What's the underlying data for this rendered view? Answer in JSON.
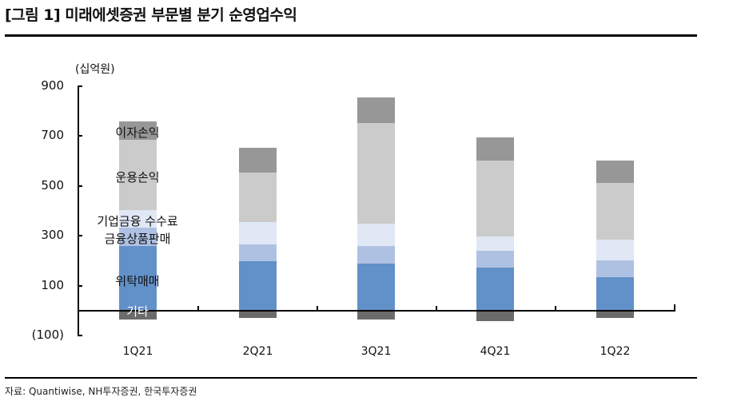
{
  "header": {
    "title": "[그림 1] 미래에셋증권 부문별 분기 순영업수익"
  },
  "footer": {
    "source": "자료: Quantiwise, NH투자증권, 한국투자증권"
  },
  "chart_data": {
    "type": "bar",
    "stacked": true,
    "title": "[그림 1] 미래에셋증권 부문별 분기 순영업수익",
    "unit": "(십억원)",
    "xlabel": "",
    "ylabel": "(십억원)",
    "ylim": [
      -100,
      900
    ],
    "yticks": [
      900,
      700,
      500,
      300,
      100,
      -100
    ],
    "ytick_labels": [
      "900",
      "700",
      "500",
      "300",
      "100",
      "(100)"
    ],
    "grid": false,
    "legend_position": "inline labels on first bar",
    "categories": [
      "1Q21",
      "2Q21",
      "3Q21",
      "4Q21",
      "1Q22"
    ],
    "series": [
      {
        "name": "기타",
        "color": "#6b6b6b",
        "values": [
          -35,
          -29,
          -35,
          -42,
          -29
        ]
      },
      {
        "name": "위탁매매",
        "color": "#6290c8",
        "values": [
          258,
          197,
          190,
          174,
          135
        ]
      },
      {
        "name": "금융상품판매",
        "color": "#afc1e2",
        "values": [
          74,
          68,
          68,
          65,
          68
        ]
      },
      {
        "name": "기업금융 수수료",
        "color": "#e0e7f5",
        "values": [
          71,
          90,
          90,
          58,
          81
        ]
      },
      {
        "name": "운용손익",
        "color": "#cbcbcb",
        "values": [
          282,
          200,
          404,
          306,
          229
        ]
      },
      {
        "name": "이자손익",
        "color": "#979797",
        "values": [
          73,
          97,
          103,
          91,
          90
        ]
      }
    ],
    "labels": {
      "interest": "이자손익",
      "trading": "운용손익",
      "ib": "기업금융 수수료",
      "wm": "금융상품판매",
      "brokerage": "위탁매매",
      "other": "기타"
    }
  }
}
